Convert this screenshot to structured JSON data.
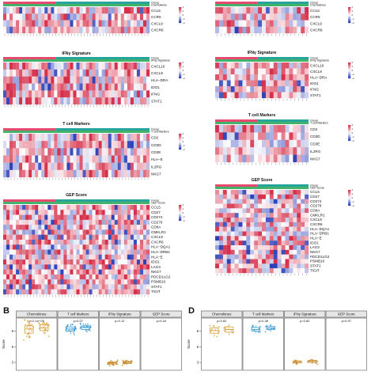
{
  "colors": {
    "red": "#d6304a",
    "white": "#ffffff",
    "blue": "#2a3fb8",
    "group_a": "#e64b6f",
    "group_b": "#26a69a",
    "sig_bar": "#43b36b",
    "chemokines": "#d9a13c",
    "tcell": "#3a9ad0",
    "ifng": "#c98a2a",
    "gep": "#3a9ad0"
  },
  "left_panels": [
    {
      "title": "",
      "annot": [
        "Group",
        "Chemokines"
      ],
      "genes": [
        "CCL5",
        "CCR5",
        "CXCL9",
        "CXCR6"
      ]
    },
    {
      "title": "IFNγ Signature",
      "annot": [
        "Group",
        "IFNγ Signature"
      ],
      "genes": [
        "CXCL10",
        "CXCL9",
        "HLA−DRA",
        "IDO1",
        "IFNG",
        "STAT1"
      ]
    },
    {
      "title": "T cell Markers",
      "annot": [
        "Group",
        "T cell Markers"
      ],
      "genes": [
        "CD2",
        "CD3D",
        "CD3E",
        "HLA−E",
        "IL2RG",
        "NKG7"
      ]
    },
    {
      "title": "GEP Score",
      "annot": [
        "Group",
        "GEP Score"
      ],
      "genes": [
        "CCL5",
        "CD27",
        "CD274",
        "CD276",
        "CD8A",
        "CMKLR1",
        "CXCL9",
        "CXCR6",
        "HLA−DQA1",
        "HLA−DRB1",
        "HLA−E",
        "IDO1",
        "LAG3",
        "NKG7",
        "PDCD1LG2",
        "PSMB10",
        "STAT1",
        "TIGIT"
      ]
    }
  ],
  "right_panels": [
    {
      "title": "",
      "annot": [
        "Group",
        "Chemokines"
      ],
      "genes": [
        "CCL5",
        "CCR5",
        "CXCL9",
        "CXCR6"
      ]
    },
    {
      "title": "IFNγ Signature",
      "annot": [
        "Group",
        "IFNγ Signature"
      ],
      "genes": [
        "CXCL10",
        "CXCL9",
        "HLA−DRA",
        "IDO1",
        "IFNG",
        "STAT1"
      ]
    },
    {
      "title": "T cell Markers",
      "annot": [
        "Group",
        "T cell Markers"
      ],
      "genes": [
        "CD2",
        "CD3D",
        "CD3E",
        "IL2RG",
        "NKG7"
      ]
    },
    {
      "title": "GEP Score",
      "annot": [
        "Group",
        "GEP Score"
      ],
      "genes": [
        "CCL5",
        "CD27",
        "CD274",
        "CD276",
        "CD8A",
        "CMKLR1",
        "CXCL9",
        "CXCR6",
        "HLA−DQA1",
        "HLA−DRB1",
        "HLA−E",
        "IDO1",
        "LAG3",
        "NKG7",
        "PDCD1LG2",
        "PSMB10",
        "STAT1",
        "TIGIT"
      ]
    }
  ],
  "legend_ticks": [
    "2",
    "1",
    "0",
    "−1",
    "−2"
  ],
  "panel_B": {
    "letter": "B",
    "ylabel": "Score",
    "yticks": [
      "9",
      "6",
      "3"
    ],
    "facets": [
      {
        "name": "Chemokines",
        "p": "p=2.1e−05",
        "box_a": [
          7.6,
          8.6,
          9.4,
          10.0,
          10.8
        ],
        "box_b": [
          8.4,
          9.1,
          9.6,
          10.2,
          10.9
        ],
        "color": "#d9a13c"
      },
      {
        "name": "T cell Markers",
        "p": "p=0.07",
        "box_a": [
          8.4,
          9.0,
          9.4,
          9.8,
          10.4
        ],
        "box_b": [
          8.9,
          9.3,
          9.7,
          10.0,
          10.5
        ],
        "color": "#3a9ad0"
      },
      {
        "name": "IFNγ Signature",
        "p": "p=0.12",
        "box_a": [
          2.4,
          2.7,
          2.9,
          3.1,
          3.4
        ],
        "box_b": [
          2.5,
          2.8,
          3.0,
          3.2,
          3.5
        ],
        "color": "#c98a2a"
      },
      {
        "name": "GEP Score",
        "p": "p=0.18",
        "box_a": [],
        "box_b": [],
        "color": "#3a9ad0"
      }
    ]
  },
  "panel_D": {
    "letter": "D",
    "ylabel": "Score",
    "yticks": [
      "9",
      "6",
      "3"
    ],
    "facets": [
      {
        "name": "Chemokines",
        "p": "p=0.62",
        "box_a": [
          7.9,
          8.6,
          9.1,
          9.6,
          10.1
        ],
        "box_b": [
          8.2,
          8.8,
          9.3,
          9.8,
          10.3
        ],
        "color": "#d9a13c"
      },
      {
        "name": "T cell Markers",
        "p": "p=0.38",
        "box_a": [
          8.6,
          9.0,
          9.3,
          9.7,
          10.1
        ],
        "box_b": [
          8.9,
          9.3,
          9.6,
          9.9,
          10.3
        ],
        "color": "#3a9ad0"
      },
      {
        "name": "IFNγ Signature",
        "p": "p=0.82",
        "box_a": [
          2.6,
          2.9,
          3.1,
          3.3,
          3.5
        ],
        "box_b": [
          2.7,
          3.0,
          3.2,
          3.4,
          3.6
        ],
        "color": "#c98a2a"
      },
      {
        "name": "GEP Score",
        "p": "p=0.97",
        "box_a": [],
        "box_b": [],
        "color": "#3a9ad0"
      }
    ]
  }
}
